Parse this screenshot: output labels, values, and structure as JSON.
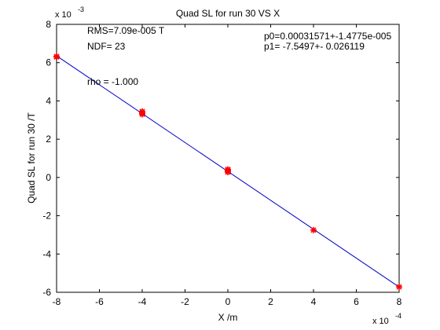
{
  "chart_data": {
    "type": "scatter",
    "title": "Quad SL for run 30 VS X",
    "xlabel": "X /m",
    "ylabel": "Quad SL for run 30 /T",
    "xlim": [
      -8,
      8
    ],
    "ylim": [
      -6,
      8
    ],
    "x_exponent_label": "x 10",
    "x_exponent_power": "-4",
    "y_exponent_label": "x 10",
    "y_exponent_power": "-3",
    "x_ticks": [
      -8,
      -6,
      -4,
      -2,
      0,
      2,
      4,
      6,
      8
    ],
    "y_ticks": [
      -6,
      -4,
      -2,
      0,
      2,
      4,
      6,
      8
    ],
    "grid": false,
    "series": [
      {
        "kind": "points",
        "color": "#ff0000",
        "marker": "asterisk",
        "points": [
          {
            "x": -8,
            "y": 6.32
          },
          {
            "x": -8,
            "y": 6.3
          },
          {
            "x": -4,
            "y": 3.45
          },
          {
            "x": -4,
            "y": 3.38
          },
          {
            "x": -4,
            "y": 3.3
          },
          {
            "x": 0,
            "y": 0.42
          },
          {
            "x": 0,
            "y": 0.35
          },
          {
            "x": 0,
            "y": 0.28
          },
          {
            "x": 4,
            "y": -2.75
          },
          {
            "x": 8,
            "y": -5.72
          }
        ]
      },
      {
        "kind": "fit_line",
        "color": "#0000cc",
        "x": [
          -8,
          8
        ],
        "y": [
          6.355,
          -5.725
        ]
      }
    ],
    "annotations": {
      "rms": "RMS=7.09e-005 T",
      "ndf": "NDF=   23",
      "rho": "rho     = -1.000",
      "p0": "p0=0.00031571+-1.4775e-005",
      "p1": "p1=  -7.5497+- 0.026119"
    }
  }
}
